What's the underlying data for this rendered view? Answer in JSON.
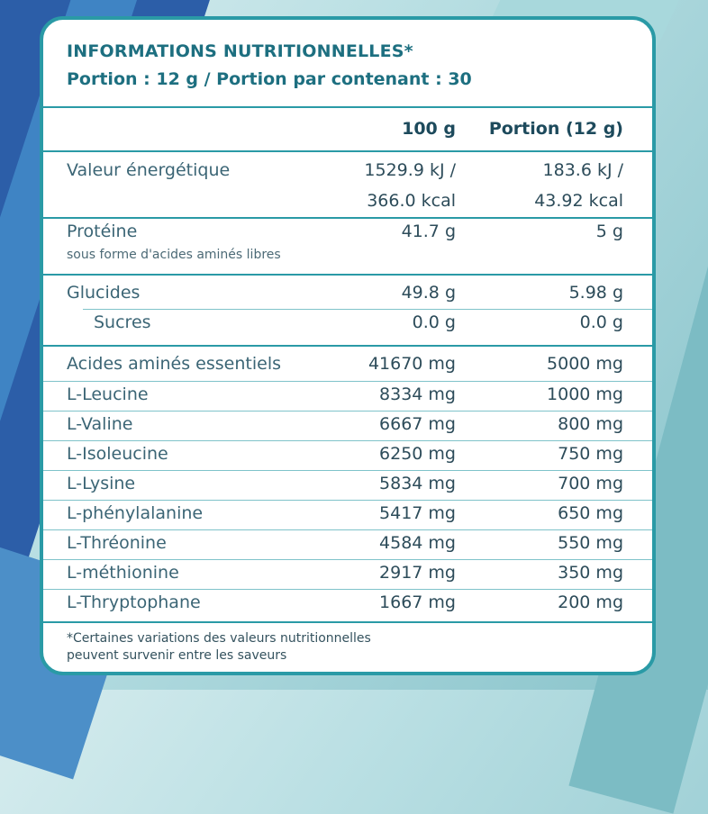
{
  "header": {
    "title": "INFORMATIONS NUTRITIONNELLES*",
    "serving": "Portion : 12 g / Portion par contenant : 30"
  },
  "columns": {
    "per100": "100 g",
    "portion": "Portion (12 g)"
  },
  "energy": {
    "label": "Valeur énergétique",
    "per100_kj": "1529.9 kJ /",
    "per100_kcal": "366.0 kcal",
    "portion_kj": "183.6 kJ /",
    "portion_kcal": "43.92 kcal"
  },
  "protein": {
    "label": "Protéine",
    "note": "sous forme d'acides aminés libres",
    "per100": "41.7 g",
    "portion": "5 g"
  },
  "carbs": {
    "label": "Glucides",
    "per100": "49.8 g",
    "portion": "5.98 g",
    "sugars_label": "Sucres",
    "sugars_per100": "0.0 g",
    "sugars_portion": "0.0 g"
  },
  "amino": [
    {
      "label": "Acides aminés essentiels",
      "per100": "41670 mg",
      "portion": "5000 mg"
    },
    {
      "label": "L-Leucine",
      "per100": "8334 mg",
      "portion": "1000 mg"
    },
    {
      "label": "L-Valine",
      "per100": "6667 mg",
      "portion": "800 mg"
    },
    {
      "label": "L-Isoleucine",
      "per100": "6250 mg",
      "portion": "750 mg"
    },
    {
      "label": "L-Lysine",
      "per100": "5834 mg",
      "portion": "700 mg"
    },
    {
      "label": "L-phénylalanine",
      "per100": "5417 mg",
      "portion": "650 mg"
    },
    {
      "label": "L-Thréonine",
      "per100": "4584 mg",
      "portion": "550 mg"
    },
    {
      "label": "L-méthionine",
      "per100": "2917 mg",
      "portion": "350 mg"
    },
    {
      "label": "L-Thryptophane",
      "per100": "1667 mg",
      "portion": "200 mg"
    }
  ],
  "footnote": {
    "line1": "*Certaines variations des valeurs nutritionnelles",
    "line2": "peuvent survenir entre les saveurs"
  }
}
